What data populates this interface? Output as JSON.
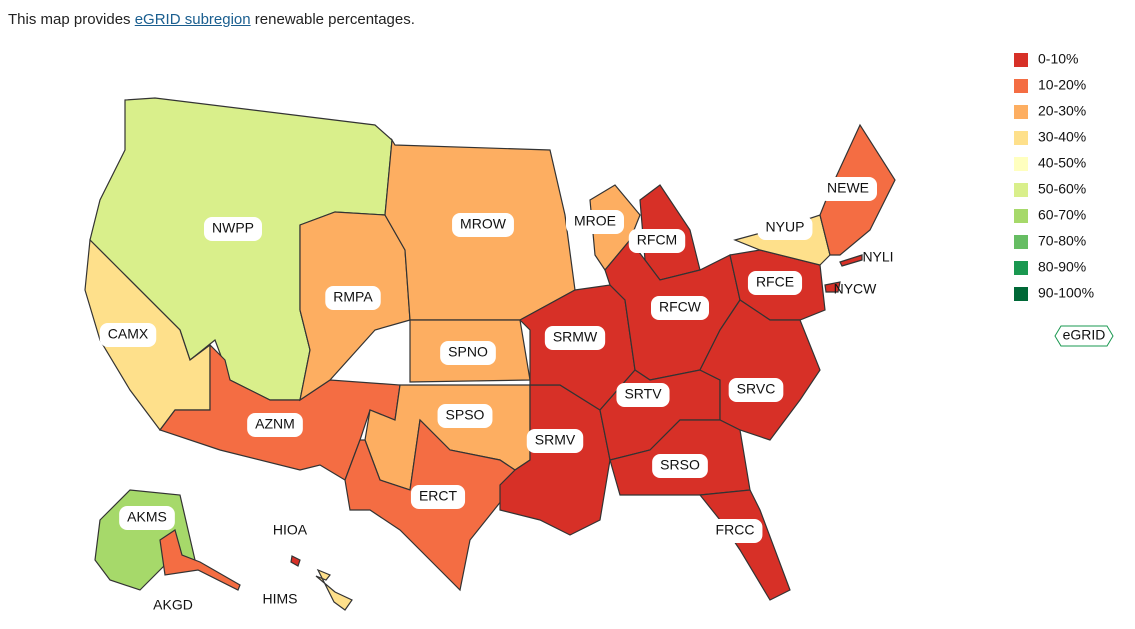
{
  "intro": {
    "before": "This map provides ",
    "link": "eGRID subregion",
    "after": " renewable percentages."
  },
  "legend": [
    {
      "label": "0-10%",
      "color": "#d73027"
    },
    {
      "label": "10-20%",
      "color": "#f46d43"
    },
    {
      "label": "20-30%",
      "color": "#fdae61"
    },
    {
      "label": "30-40%",
      "color": "#fee08b"
    },
    {
      "label": "40-50%",
      "color": "#ffffbf"
    },
    {
      "label": "50-60%",
      "color": "#d9ef8b"
    },
    {
      "label": "60-70%",
      "color": "#a6d96a"
    },
    {
      "label": "70-80%",
      "color": "#66bd63"
    },
    {
      "label": "80-90%",
      "color": "#1a9850"
    },
    {
      "label": "90-100%",
      "color": "#006837"
    }
  ],
  "badge": "eGRID",
  "regions": [
    {
      "label": "NWPP",
      "color": "#d9ef8b"
    },
    {
      "label": "CAMX",
      "color": "#fee08b"
    },
    {
      "label": "AZNM",
      "color": "#f46d43"
    },
    {
      "label": "RMPA",
      "color": "#fdae61"
    },
    {
      "label": "MROW",
      "color": "#fdae61"
    },
    {
      "label": "SPNO",
      "color": "#fdae61"
    },
    {
      "label": "SPSO",
      "color": "#fdae61"
    },
    {
      "label": "ERCT",
      "color": "#f46d43"
    },
    {
      "label": "SRMV",
      "color": "#d73027"
    },
    {
      "label": "SRMW",
      "color": "#d73027"
    },
    {
      "label": "MROE",
      "color": "#fdae61"
    },
    {
      "label": "RFCM",
      "color": "#d73027"
    },
    {
      "label": "RFCW",
      "color": "#d73027"
    },
    {
      "label": "RFCE",
      "color": "#d73027"
    },
    {
      "label": "SRTV",
      "color": "#d73027"
    },
    {
      "label": "SRVC",
      "color": "#d73027"
    },
    {
      "label": "SRSO",
      "color": "#d73027"
    },
    {
      "label": "FRCC",
      "color": "#d73027"
    },
    {
      "label": "NYUP",
      "color": "#fee08b"
    },
    {
      "label": "NEWE",
      "color": "#f46d43"
    },
    {
      "label": "NYCW",
      "color": "#d73027"
    },
    {
      "label": "NYLI",
      "color": "#d73027"
    },
    {
      "label": "AKMS",
      "color": "#a6d96a"
    },
    {
      "label": "AKGD",
      "color": "#f46d43"
    },
    {
      "label": "HIOA",
      "color": "#d73027"
    },
    {
      "label": "HIMS",
      "color": "#fee08b"
    }
  ]
}
